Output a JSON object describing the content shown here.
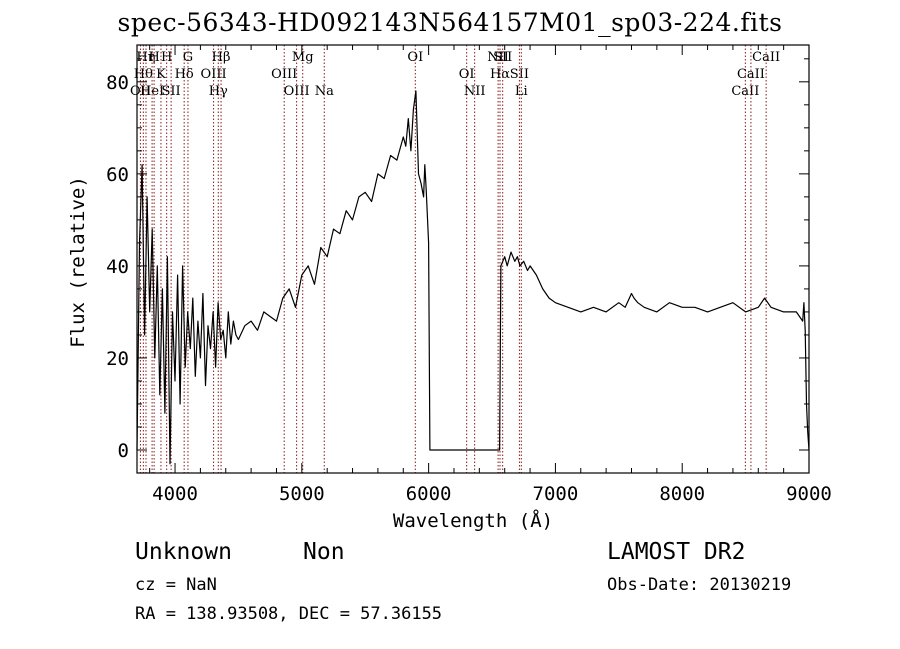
{
  "title": "spec-56343-HD092143N564157M01_sp03-224.fits",
  "footer": {
    "class_label": "Unknown",
    "subclass_label": "Non",
    "cz_text": "cz = NaN",
    "coords_text": "RA = 138.93508, DEC =  57.36155",
    "survey_label": "LAMOST DR2",
    "obs_date_text": "Obs-Date: 20130219"
  },
  "chart_data": {
    "type": "line",
    "title": "spec-56343-HD092143N564157M01_sp03-224.fits",
    "xlabel": "Wavelength (Å)",
    "ylabel": "Flux (relative)",
    "xlim": [
      3700,
      9000
    ],
    "ylim": [
      -5,
      88
    ],
    "xticks": [
      4000,
      5000,
      6000,
      7000,
      8000,
      9000
    ],
    "yticks": [
      0,
      20,
      40,
      60,
      80
    ],
    "grid": false,
    "legend": "none",
    "line_color": "#000000",
    "marker_color": "#8b1a1a",
    "series": [
      {
        "x": [
          3700,
          3720,
          3740,
          3760,
          3780,
          3800,
          3820,
          3840,
          3860,
          3880,
          3900,
          3920,
          3940,
          3960,
          3980,
          4000,
          4020,
          4040,
          4060,
          4080,
          4100,
          4120,
          4140,
          4160,
          4180,
          4200,
          4220,
          4240,
          4260,
          4280,
          4300,
          4320,
          4340,
          4360,
          4380,
          4400,
          4420,
          4440,
          4460,
          4480,
          4500,
          4550,
          4600,
          4650,
          4700,
          4750,
          4800,
          4850,
          4900,
          4950,
          5000,
          5050,
          5100,
          5150,
          5200,
          5250,
          5300,
          5350,
          5400,
          5450,
          5500,
          5550,
          5600,
          5650,
          5700,
          5750,
          5800,
          5820,
          5840,
          5860,
          5880,
          5900,
          5920,
          5940,
          5960,
          5970,
          5980,
          6000,
          6010,
          6100,
          6200,
          6300,
          6400,
          6500,
          6560,
          6570,
          6600,
          6620,
          6650,
          6680,
          6700,
          6720,
          6750,
          6780,
          6800,
          6850,
          6900,
          6950,
          7000,
          7100,
          7200,
          7300,
          7400,
          7500,
          7550,
          7600,
          7620,
          7650,
          7700,
          7800,
          7900,
          8000,
          8100,
          8200,
          8300,
          8400,
          8500,
          8600,
          8650,
          8700,
          8800,
          8900,
          8950,
          8960,
          8970,
          8980,
          8990,
          9000
        ],
        "y": [
          0,
          45,
          62,
          25,
          55,
          30,
          48,
          20,
          40,
          12,
          35,
          8,
          42,
          -3,
          30,
          15,
          38,
          10,
          40,
          18,
          30,
          22,
          33,
          16,
          28,
          20,
          34,
          14,
          27,
          22,
          30,
          18,
          32,
          24,
          26,
          20,
          30,
          23,
          28,
          25,
          24,
          27,
          28,
          26,
          30,
          29,
          28,
          33,
          35,
          31,
          38,
          40,
          36,
          44,
          42,
          48,
          47,
          52,
          50,
          55,
          56,
          54,
          60,
          59,
          64,
          63,
          68,
          66,
          72,
          65,
          74,
          78,
          60,
          58,
          55,
          62,
          57,
          45,
          0,
          0,
          0,
          0,
          0,
          0,
          0,
          40,
          42,
          40,
          43,
          41,
          42,
          40,
          41,
          39,
          40,
          38,
          35,
          33,
          32,
          31,
          30,
          31,
          30,
          32,
          31,
          34,
          33,
          32,
          31,
          30,
          32,
          31,
          31,
          30,
          31,
          32,
          30,
          31,
          33,
          31,
          30,
          30,
          28,
          32,
          26,
          10,
          4,
          0
        ],
        "values": [
          0,
          45,
          62,
          25,
          55,
          30,
          48,
          20,
          40,
          12,
          35,
          8,
          42,
          -3,
          30,
          15,
          38,
          10,
          40,
          18,
          30,
          22,
          33,
          16,
          28,
          20,
          34,
          14,
          27,
          22,
          30,
          18,
          32,
          24,
          26,
          20,
          30,
          23,
          28,
          25,
          24,
          27,
          28,
          26,
          30,
          29,
          28,
          33,
          35,
          31,
          38,
          40,
          36,
          44,
          42,
          48,
          47,
          52,
          50,
          55,
          56,
          54,
          60,
          59,
          64,
          63,
          68,
          66,
          72,
          65,
          74,
          78,
          60,
          58,
          55,
          62,
          57,
          45,
          0,
          0,
          0,
          0,
          0,
          0,
          0,
          40,
          42,
          40,
          43,
          41,
          42,
          40,
          41,
          39,
          40,
          38,
          35,
          33,
          32,
          31,
          30,
          31,
          30,
          32,
          31,
          34,
          33,
          32,
          31,
          30,
          32,
          31,
          31,
          30,
          31,
          32,
          30,
          31,
          33,
          31,
          30,
          30,
          28,
          32,
          26,
          10,
          4,
          0
        ]
      }
    ],
    "annotations": [
      {
        "label": "OII",
        "x": 3727,
        "row": 2
      },
      {
        "label": "Hθ",
        "x": 3750,
        "row": 1
      },
      {
        "label": "Hη",
        "x": 3771,
        "row": 0
      },
      {
        "label": "HeI",
        "x": 3819,
        "row": 2
      },
      {
        "label": "H",
        "x": 3835,
        "row": 0
      },
      {
        "label": "K",
        "x": 3889,
        "row": 1
      },
      {
        "label": "H",
        "x": 3934,
        "row": 0
      },
      {
        "label": "SII",
        "x": 3969,
        "row": 2
      },
      {
        "label": "Hδ",
        "x": 4072,
        "row": 1
      },
      {
        "label": "G",
        "x": 4102,
        "row": 0
      },
      {
        "label": "OIII",
        "x": 4304,
        "row": 1
      },
      {
        "label": "Hγ",
        "x": 4341,
        "row": 2
      },
      {
        "label": "Hβ",
        "x": 4363,
        "row": 0
      },
      {
        "label": "OIII",
        "x": 4861,
        "row": 1
      },
      {
        "label": "OIII",
        "x": 4959,
        "row": 2
      },
      {
        "label": "Mg",
        "x": 5007,
        "row": 0
      },
      {
        "label": "Na",
        "x": 5177,
        "row": 2
      },
      {
        "label": "OI",
        "x": 5895,
        "row": 0
      },
      {
        "label": "OI",
        "x": 6300,
        "row": 1
      },
      {
        "label": "NII",
        "x": 6363,
        "row": 2
      },
      {
        "label": "NII",
        "x": 6548,
        "row": 0
      },
      {
        "label": "Hα",
        "x": 6563,
        "row": 1
      },
      {
        "label": "SII",
        "x": 6584,
        "row": 0
      },
      {
        "label": "SII",
        "x": 6716,
        "row": 1
      },
      {
        "label": "Li",
        "x": 6731,
        "row": 2
      },
      {
        "label": "CaII",
        "x": 8498,
        "row": 2
      },
      {
        "label": "CaII",
        "x": 8542,
        "row": 1
      },
      {
        "label": "CaII",
        "x": 8662,
        "row": 0
      }
    ]
  }
}
